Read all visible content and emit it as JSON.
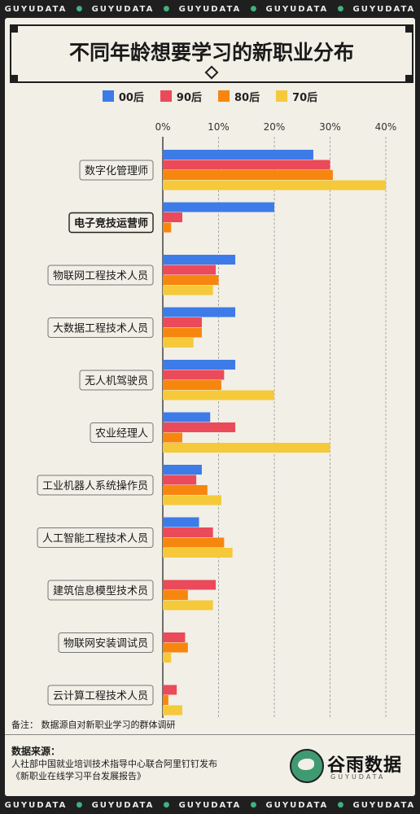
{
  "header_strip": [
    "GUYUDATA",
    "GUYUDATA",
    "GUYUDATA",
    "GUYUDATA",
    "GUYUDATA"
  ],
  "title": "不同年龄想要学习的新职业分布",
  "legend": [
    {
      "label": "00后",
      "color": "#3d7be8"
    },
    {
      "label": "90后",
      "color": "#ea4a5a"
    },
    {
      "label": "80后",
      "color": "#f7860f"
    },
    {
      "label": "70后",
      "color": "#f5c93a"
    }
  ],
  "chart_data": {
    "type": "bar",
    "orientation": "horizontal",
    "title": "不同年龄想要学习的新职业分布",
    "x_ticks": [
      "0%",
      "10%",
      "20%",
      "30%",
      "40%"
    ],
    "xlim": [
      0,
      40
    ],
    "categories": [
      "数字化管理师",
      "电子竞技运营师",
      "物联网工程技术人员",
      "大数据工程技术人员",
      "无人机驾驶员",
      "农业经理人",
      "工业机器人系统操作员",
      "人工智能工程技术人员",
      "建筑信息模型技术员",
      "物联网安装调试员",
      "云计算工程技术人员"
    ],
    "highlighted_category": "电子竞技运营师",
    "series": [
      {
        "name": "00后",
        "color": "#3d7be8",
        "values": [
          27,
          20,
          13,
          13,
          13,
          8.5,
          7,
          6.5,
          0,
          0,
          0
        ]
      },
      {
        "name": "90后",
        "color": "#ea4a5a",
        "values": [
          30,
          3.5,
          9.5,
          7,
          11,
          13,
          6,
          9,
          9.5,
          4,
          2.5
        ]
      },
      {
        "name": "80后",
        "color": "#f7860f",
        "values": [
          30.5,
          1.5,
          10,
          7,
          10.5,
          3.5,
          8,
          11,
          4.5,
          4.5,
          1
        ]
      },
      {
        "name": "70后",
        "color": "#f5c93a",
        "values": [
          40,
          0,
          9,
          5.5,
          20,
          30,
          10.5,
          12.5,
          9,
          1.5,
          3.5
        ]
      }
    ],
    "grid": true,
    "legend_position": "top"
  },
  "note": "备注：  数据源自对新职业学习的群体调研",
  "source": {
    "heading": "数据来源：",
    "line1": "人社部中国就业培训技术指导中心联合阿里钉钉发布",
    "line2": "《新职业在线学习平台发展报告》"
  },
  "logo": {
    "cn": "谷雨数据",
    "en": "GUYUDATA"
  }
}
